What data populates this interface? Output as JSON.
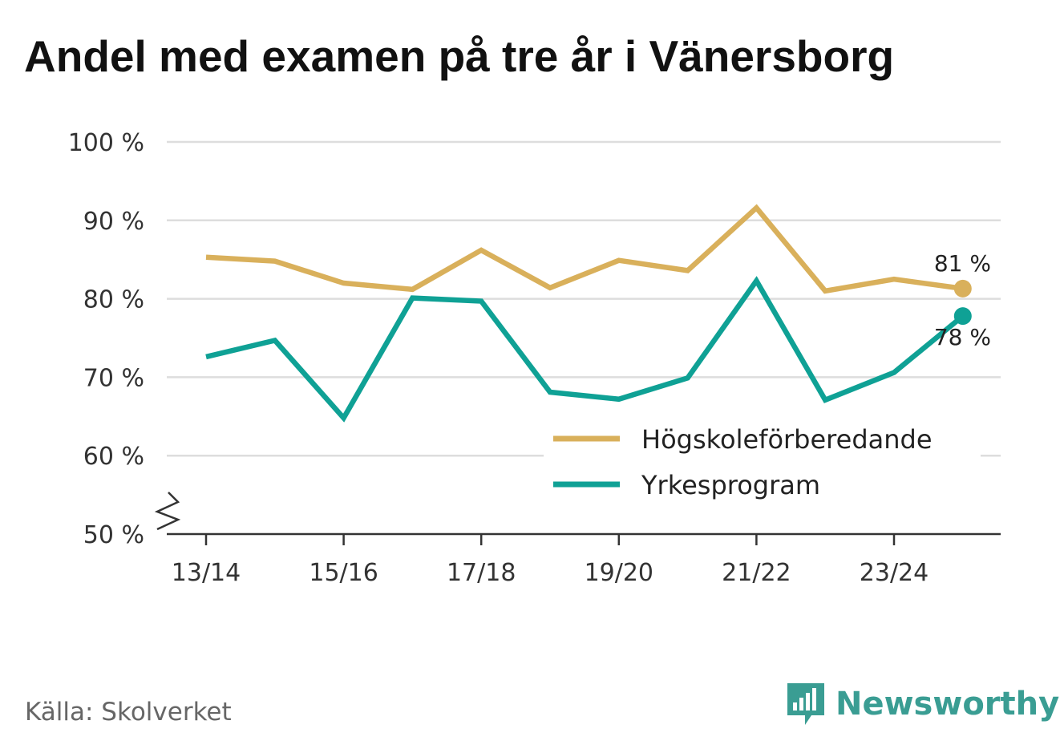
{
  "header": {
    "title": "Andel med examen på tre år i Vänersborg"
  },
  "footer": {
    "source": "Källa: Skolverket",
    "brand": "Newsworthy"
  },
  "chart_data": {
    "type": "line",
    "x": [
      "13/14",
      "14/15",
      "15/16",
      "16/17",
      "17/18",
      "18/19",
      "19/20",
      "20/21",
      "21/22",
      "22/23",
      "23/24",
      "24/25"
    ],
    "x_tick_labels": [
      "13/14",
      "15/16",
      "17/18",
      "19/20",
      "21/22",
      "23/24"
    ],
    "y_tick_labels": [
      "100 %",
      "90 %",
      "80 %",
      "70 %",
      "60 %",
      "50 %"
    ],
    "y_ticks": [
      100,
      90,
      80,
      70,
      60,
      50
    ],
    "ylim": [
      50,
      100
    ],
    "y_axis_break": true,
    "grid": true,
    "legend_position": "bottom-right",
    "series": [
      {
        "name": "Högskoleförberedande",
        "color": "#d9b05b",
        "values": [
          85.3,
          84.8,
          82.0,
          81.2,
          86.2,
          81.4,
          84.9,
          83.6,
          91.6,
          81.0,
          82.5,
          81.3
        ],
        "end_label": "81 %"
      },
      {
        "name": "Yrkesprogram",
        "color": "#0fa195",
        "values": [
          72.6,
          74.7,
          64.8,
          80.1,
          79.7,
          68.1,
          67.2,
          69.9,
          82.3,
          67.1,
          70.6,
          77.8
        ],
        "end_label": "78 %"
      }
    ]
  }
}
